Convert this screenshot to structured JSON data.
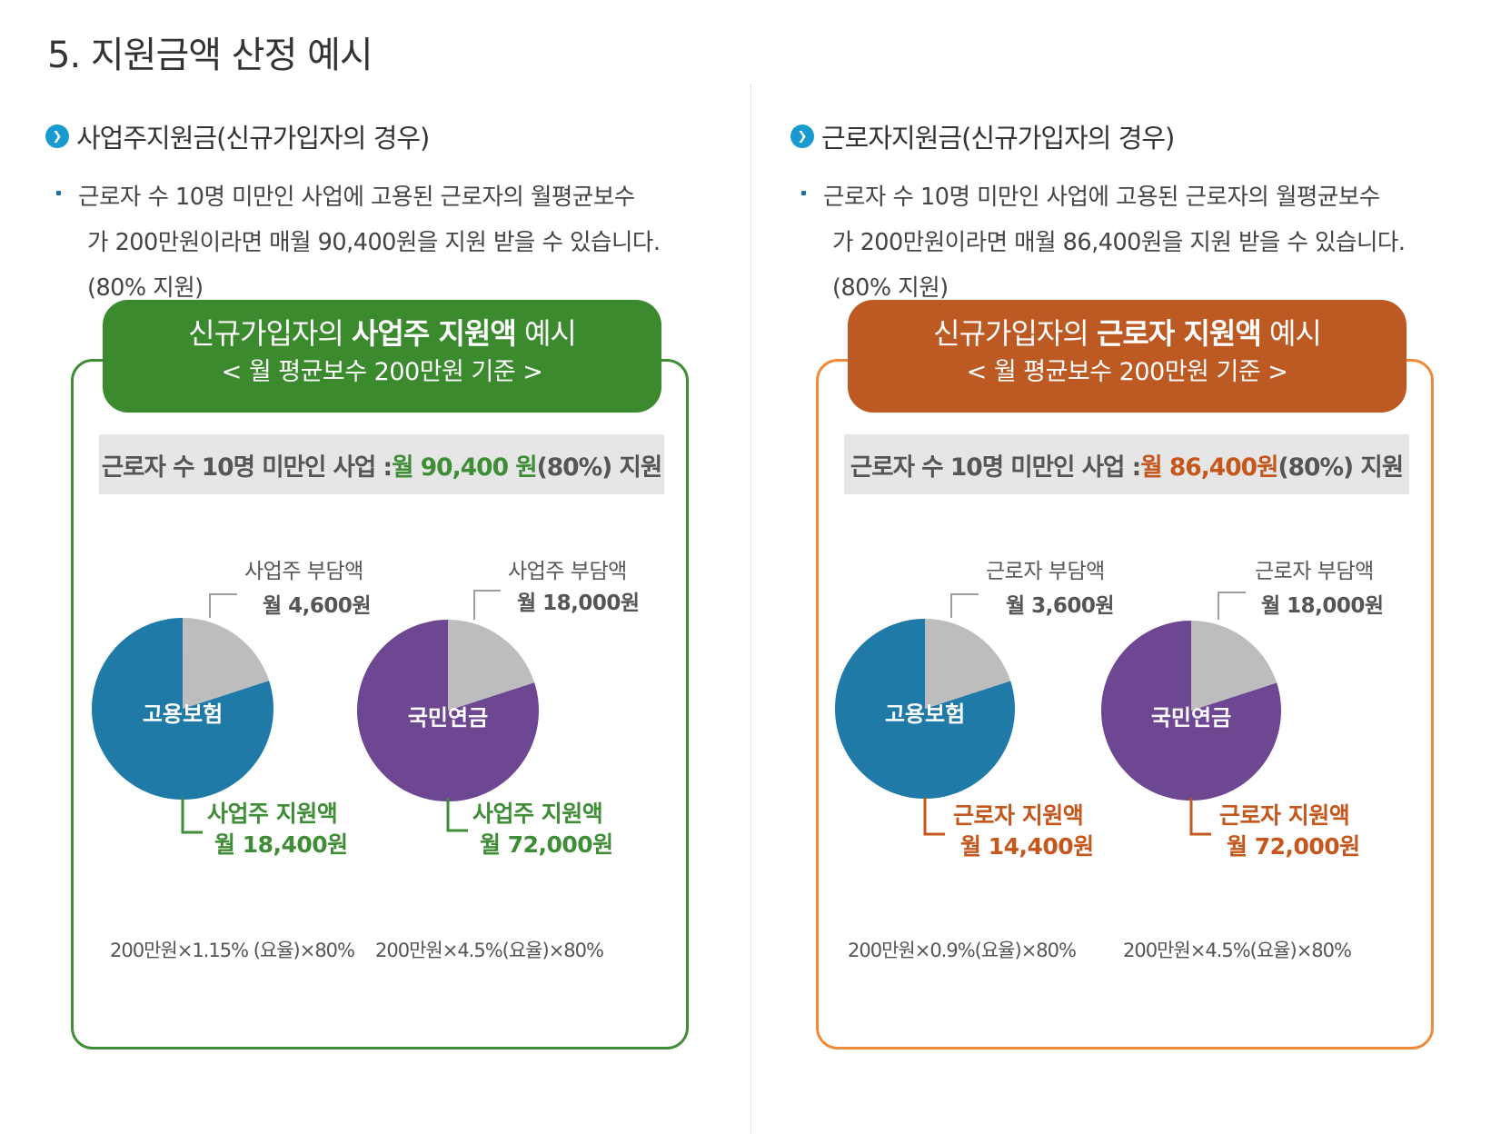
{
  "page_title": "5. 지원금액 산정 예시",
  "colors": {
    "employer_green": "#3c8a2e",
    "worker_orange": "#bd5a24",
    "employment_insurance_blue": "#1f7aa8",
    "national_pension_purple": "#6e4793",
    "burden_gray": "#bdbdbd",
    "bullet_blue": "#1a9bcf"
  },
  "sections": [
    {
      "icon": "circle-arrow-icon",
      "heading": "사업주지원금(신규가입자의 경우)",
      "desc_line1": "근로자 수 10명 미만인 사업에 고용된 근로자의 월평균보수",
      "desc_line2": "가 200만원이라면 매월 90,400원을 지원 받을 수 있습니다.",
      "desc_line3": "(80% 지원)",
      "card_title_pre": "신규가입자의 ",
      "card_title_bold": "사업주 지원액",
      "card_title_post": " 예시",
      "card_subtitle": "< 월 평균보수 200만원 기준 >",
      "summary_pre": "근로자 수 10명 미만인 사업 : ",
      "summary_amount": "월 90,400 원",
      "summary_post": "(80%) 지원",
      "formula1": "200만원×1.15% (요율)×80%",
      "formula2": "200만원×4.5%(요율)×80%"
    },
    {
      "icon": "circle-arrow-icon",
      "heading": "근로자지원금(신규가입자의 경우)",
      "desc_line1": "근로자 수 10명 미만인 사업에 고용된 근로자의 월평균보수",
      "desc_line2": "가 200만원이라면 매월 86,400원을 지원 받을 수 있습니다.",
      "desc_line3": "(80% 지원)",
      "card_title_pre": "신규가입자의 ",
      "card_title_bold": "근로자 지원액",
      "card_title_post": " 예시",
      "card_subtitle": "< 월 평균보수 200만원 기준 >",
      "summary_pre": "근로자 수 10명 미만인 사업 : ",
      "summary_amount": "월 86,400원",
      "summary_post": "(80%) 지원",
      "formula1": "200만원×0.9%(요율)×80%",
      "formula2": "200만원×4.5%(요율)×80%"
    }
  ],
  "chart_data": [
    {
      "type": "pie",
      "title": "고용보험",
      "slices": [
        {
          "label": "사업주 부담액",
          "value_text": "월 4,600원",
          "value": 4600,
          "color": "#bdbdbd"
        },
        {
          "label": "사업주 지원액",
          "value_text": "월 18,400원",
          "value": 18400,
          "color": "#1f7aa8"
        }
      ]
    },
    {
      "type": "pie",
      "title": "국민연금",
      "slices": [
        {
          "label": "사업주 부담액",
          "value_text": "월 18,000원",
          "value": 18000,
          "color": "#bdbdbd"
        },
        {
          "label": "사업주 지원액",
          "value_text": "월 72,000원",
          "value": 72000,
          "color": "#6e4793"
        }
      ]
    },
    {
      "type": "pie",
      "title": "고용보험",
      "slices": [
        {
          "label": "근로자 부담액",
          "value_text": "월 3,600원",
          "value": 3600,
          "color": "#bdbdbd"
        },
        {
          "label": "근로자 지원액",
          "value_text": "월 14,400원",
          "value": 14400,
          "color": "#1f7aa8"
        }
      ]
    },
    {
      "type": "pie",
      "title": "국민연금",
      "slices": [
        {
          "label": "근로자 부담액",
          "value_text": "월 18,000원",
          "value": 18000,
          "color": "#bdbdbd"
        },
        {
          "label": "근로자 지원액",
          "value_text": "월 72,000원",
          "value": 72000,
          "color": "#6e4793"
        }
      ]
    }
  ]
}
